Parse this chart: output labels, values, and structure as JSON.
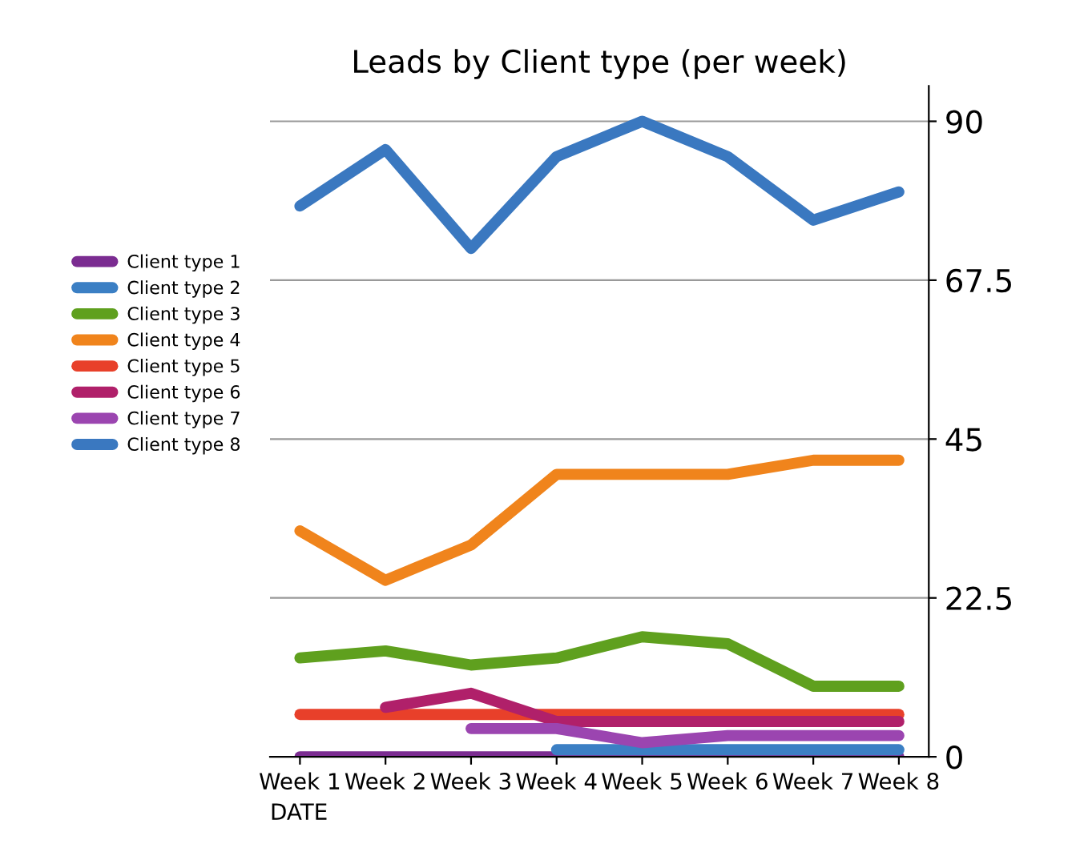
{
  "chart_data": {
    "type": "line",
    "title": "Leads by Client type (per week)",
    "xlabel": "DATE",
    "categories": [
      "Week 1",
      "Week 2",
      "Week 3",
      "Week 4",
      "Week 5",
      "Week 6",
      "Week 7",
      "Week 8"
    ],
    "series": [
      {
        "name": "Client type 1",
        "color": "#7b2c91",
        "values": [
          0,
          0,
          0,
          0,
          0,
          0,
          0,
          0
        ]
      },
      {
        "name": "Client type 2",
        "color": "#3b7fc4",
        "values": [
          null,
          null,
          null,
          1,
          1,
          1,
          1,
          1
        ]
      },
      {
        "name": "Client type 3",
        "color": "#5fa01e",
        "values": [
          14,
          15,
          13,
          14,
          17,
          16,
          10,
          10
        ]
      },
      {
        "name": "Client type 4",
        "color": "#f0841c",
        "values": [
          32,
          25,
          30,
          40,
          40,
          40,
          42,
          42
        ]
      },
      {
        "name": "Client type 5",
        "color": "#e8402a",
        "values": [
          6,
          6,
          6,
          6,
          6,
          6,
          6,
          6
        ]
      },
      {
        "name": "Client type 6",
        "color": "#b0206a",
        "values": [
          null,
          7,
          9,
          5,
          5,
          5,
          5,
          5
        ]
      },
      {
        "name": "Client type 7",
        "color": "#9b45b0",
        "values": [
          null,
          null,
          4,
          4,
          2,
          3,
          3,
          3
        ]
      },
      {
        "name": "Client type 8",
        "color": "#3a78c0",
        "values": [
          78,
          86,
          72,
          85,
          90,
          85,
          76,
          80
        ]
      }
    ],
    "ylim": [
      0,
      95
    ],
    "yticks": [
      0,
      22.5,
      45,
      67.5,
      90
    ],
    "grid": "y",
    "legend": "left"
  }
}
